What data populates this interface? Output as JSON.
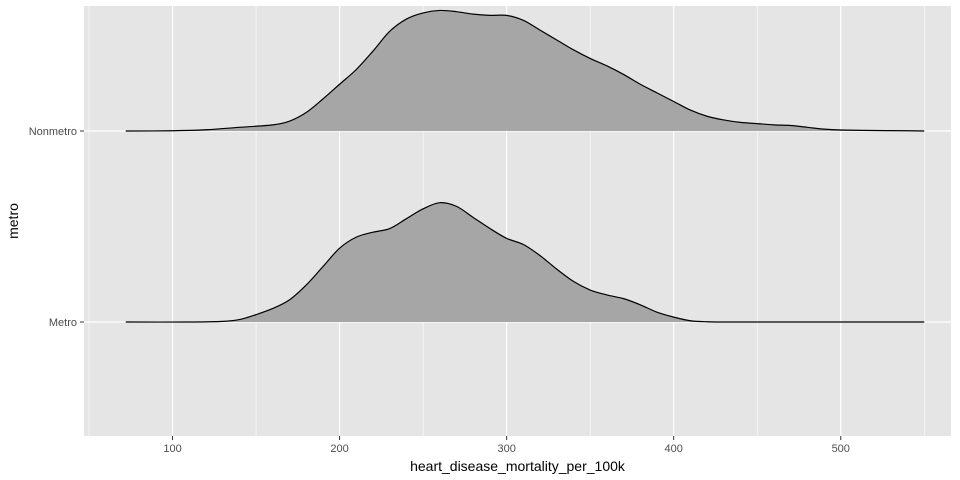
{
  "chart_data": {
    "type": "ridgeline",
    "xlabel": "heart_disease_mortality_per_100k",
    "ylabel": "metro",
    "xlim": [
      47,
      566
    ],
    "x_ticks": [
      100,
      200,
      300,
      400,
      500
    ],
    "x_tick_labels": [
      "100",
      "200",
      "300",
      "400",
      "500"
    ],
    "categories": [
      "Metro",
      "Nonmetro"
    ],
    "grid": true,
    "legend": "none",
    "colors": {
      "panel": "#e5e5e5",
      "grid": "#ffffff",
      "fill": "#a6a6a6",
      "line": "#000000",
      "tick_text": "#4d4d4d"
    },
    "series": [
      {
        "name": "Metro",
        "points": [
          [
            72,
            0
          ],
          [
            110,
            0
          ],
          [
            130,
            0.005
          ],
          [
            140,
            0.02
          ],
          [
            150,
            0.06
          ],
          [
            160,
            0.11
          ],
          [
            170,
            0.18
          ],
          [
            180,
            0.3
          ],
          [
            190,
            0.45
          ],
          [
            200,
            0.6
          ],
          [
            210,
            0.69
          ],
          [
            220,
            0.73
          ],
          [
            230,
            0.76
          ],
          [
            240,
            0.84
          ],
          [
            250,
            0.92
          ],
          [
            260,
            0.97
          ],
          [
            270,
            0.94
          ],
          [
            280,
            0.85
          ],
          [
            290,
            0.76
          ],
          [
            300,
            0.68
          ],
          [
            310,
            0.63
          ],
          [
            320,
            0.54
          ],
          [
            330,
            0.43
          ],
          [
            340,
            0.33
          ],
          [
            350,
            0.26
          ],
          [
            360,
            0.22
          ],
          [
            370,
            0.19
          ],
          [
            380,
            0.14
          ],
          [
            390,
            0.08
          ],
          [
            400,
            0.04
          ],
          [
            410,
            0.01
          ],
          [
            420,
            0.002
          ],
          [
            440,
            0
          ],
          [
            550,
            0
          ]
        ]
      },
      {
        "name": "Nonmetro",
        "points": [
          [
            72,
            0
          ],
          [
            100,
            0.002
          ],
          [
            120,
            0.01
          ],
          [
            140,
            0.03
          ],
          [
            160,
            0.05
          ],
          [
            170,
            0.08
          ],
          [
            180,
            0.15
          ],
          [
            190,
            0.26
          ],
          [
            200,
            0.38
          ],
          [
            210,
            0.5
          ],
          [
            220,
            0.65
          ],
          [
            230,
            0.81
          ],
          [
            240,
            0.91
          ],
          [
            250,
            0.96
          ],
          [
            260,
            0.98
          ],
          [
            270,
            0.97
          ],
          [
            280,
            0.95
          ],
          [
            290,
            0.94
          ],
          [
            300,
            0.94
          ],
          [
            310,
            0.9
          ],
          [
            320,
            0.82
          ],
          [
            330,
            0.74
          ],
          [
            340,
            0.66
          ],
          [
            350,
            0.59
          ],
          [
            360,
            0.53
          ],
          [
            370,
            0.46
          ],
          [
            380,
            0.38
          ],
          [
            390,
            0.31
          ],
          [
            400,
            0.24
          ],
          [
            410,
            0.17
          ],
          [
            420,
            0.12
          ],
          [
            430,
            0.09
          ],
          [
            440,
            0.07
          ],
          [
            450,
            0.06
          ],
          [
            460,
            0.05
          ],
          [
            470,
            0.045
          ],
          [
            480,
            0.03
          ],
          [
            490,
            0.015
          ],
          [
            500,
            0.008
          ],
          [
            520,
            0.004
          ],
          [
            540,
            0.002
          ],
          [
            550,
            0
          ]
        ]
      }
    ]
  }
}
